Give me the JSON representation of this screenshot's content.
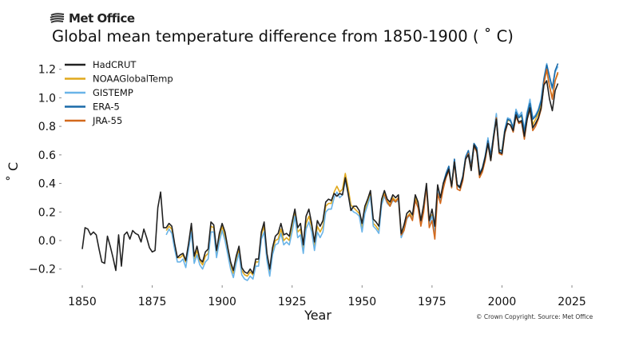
{
  "logo": "Met Office",
  "copyright": "© Crown Copyright. Source: Met Office",
  "chart_data": {
    "type": "line",
    "title": "Global mean temperature difference from 1850-1900 ( ˚ C)",
    "xlabel": "Year",
    "ylabel": "˚ C",
    "xlim": [
      1843,
      2027
    ],
    "ylim": [
      -0.3,
      1.3
    ],
    "xticks": [
      1850,
      1875,
      1900,
      1925,
      1950,
      1975,
      2000,
      2025
    ],
    "xtick_labels": [
      "1850",
      "1875",
      "1900",
      "1925",
      "1950",
      "1975",
      "2000",
      "2025"
    ],
    "yticks": [
      -0.2,
      0.0,
      0.2,
      0.4,
      0.6,
      0.8,
      1.0,
      1.2
    ],
    "ytick_labels": [
      "−0.2",
      "0.0",
      "0.2",
      "0.4",
      "0.6",
      "0.8",
      "1.0",
      "1.2"
    ],
    "grid": false,
    "legend": "top-left",
    "series": [
      {
        "name": "HadCRUT",
        "color": "#222222",
        "start_year": 1850,
        "values": [
          -0.06,
          0.09,
          0.08,
          0.04,
          0.06,
          0.04,
          -0.06,
          -0.15,
          -0.16,
          0.03,
          -0.04,
          -0.12,
          -0.21,
          0.04,
          -0.18,
          0.04,
          0.06,
          0.01,
          0.07,
          0.05,
          0.04,
          -0.01,
          0.08,
          0.02,
          -0.05,
          -0.08,
          -0.07,
          0.23,
          0.34,
          0.09,
          0.09,
          0.12,
          0.1,
          -0.02,
          -0.12,
          -0.1,
          -0.09,
          -0.14,
          -0.02,
          0.12,
          -0.11,
          -0.04,
          -0.13,
          -0.15,
          -0.08,
          -0.06,
          0.13,
          0.11,
          -0.07,
          0.05,
          0.12,
          0.06,
          -0.05,
          -0.15,
          -0.21,
          -0.11,
          -0.04,
          -0.19,
          -0.22,
          -0.23,
          -0.2,
          -0.23,
          -0.13,
          -0.13,
          0.06,
          0.13,
          -0.09,
          -0.2,
          -0.05,
          0.03,
          0.05,
          0.12,
          0.04,
          0.05,
          0.03,
          0.13,
          0.22,
          0.09,
          0.12,
          -0.03,
          0.17,
          0.22,
          0.12,
          -0.01,
          0.14,
          0.1,
          0.14,
          0.27,
          0.29,
          0.28,
          0.33,
          0.31,
          0.33,
          0.32,
          0.44,
          0.33,
          0.21,
          0.24,
          0.24,
          0.21,
          0.12,
          0.24,
          0.29,
          0.35,
          0.15,
          0.13,
          0.1,
          0.29,
          0.35,
          0.29,
          0.27,
          0.32,
          0.3,
          0.32,
          0.05,
          0.11,
          0.19,
          0.21,
          0.18,
          0.32,
          0.27,
          0.14,
          0.25,
          0.4,
          0.14,
          0.22,
          0.1,
          0.39,
          0.3,
          0.4,
          0.45,
          0.5,
          0.38,
          0.55,
          0.39,
          0.37,
          0.44,
          0.57,
          0.6,
          0.49,
          0.67,
          0.63,
          0.46,
          0.5,
          0.58,
          0.68,
          0.56,
          0.72,
          0.85,
          0.62,
          0.61,
          0.76,
          0.82,
          0.81,
          0.77,
          0.88,
          0.83,
          0.84,
          0.73,
          0.85,
          0.93,
          0.79,
          0.82,
          0.86,
          0.93,
          1.09,
          1.12,
          0.99,
          0.91,
          1.05,
          1.1
        ]
      },
      {
        "name": "NOAAGlobalTemp",
        "color": "#e0a81c",
        "start_year": 1880,
        "values": [
          0.07,
          0.1,
          0.08,
          -0.04,
          -0.12,
          -0.12,
          -0.1,
          -0.15,
          -0.03,
          0.1,
          -0.13,
          -0.07,
          -0.14,
          -0.17,
          -0.11,
          -0.09,
          0.1,
          0.09,
          -0.09,
          0.02,
          0.1,
          0.03,
          -0.07,
          -0.17,
          -0.23,
          -0.13,
          -0.06,
          -0.21,
          -0.24,
          -0.25,
          -0.22,
          -0.24,
          -0.15,
          -0.15,
          0.04,
          0.1,
          -0.11,
          -0.22,
          -0.07,
          0.0,
          0.01,
          0.08,
          0.0,
          0.02,
          0.0,
          0.1,
          0.2,
          0.06,
          0.08,
          -0.06,
          0.12,
          0.17,
          0.1,
          -0.04,
          0.1,
          0.06,
          0.1,
          0.24,
          0.26,
          0.26,
          0.34,
          0.38,
          0.34,
          0.36,
          0.47,
          0.37,
          0.25,
          0.23,
          0.21,
          0.19,
          0.09,
          0.21,
          0.27,
          0.33,
          0.12,
          0.1,
          0.07,
          0.27,
          0.33,
          0.28,
          0.25,
          0.3,
          0.28,
          0.3,
          0.03,
          0.08,
          0.16,
          0.19,
          0.16,
          0.3,
          0.25,
          0.12,
          0.23,
          0.38,
          0.12,
          0.18,
          0.06,
          0.37,
          0.28,
          0.38,
          0.46,
          0.5,
          0.38,
          0.56,
          0.38,
          0.37,
          0.44,
          0.58,
          0.61,
          0.5,
          0.67,
          0.63,
          0.46,
          0.5,
          0.58,
          0.7,
          0.57,
          0.74,
          0.88,
          0.64,
          0.63,
          0.78,
          0.84,
          0.84,
          0.79,
          0.91,
          0.86,
          0.87,
          0.76,
          0.88,
          0.96,
          0.81,
          0.85,
          0.89,
          0.96,
          1.12,
          1.19,
          1.08,
          1.0,
          1.12,
          1.17
        ]
      },
      {
        "name": "GISTEMP",
        "color": "#6ab4e8",
        "start_year": 1880,
        "values": [
          0.04,
          0.08,
          0.05,
          -0.06,
          -0.15,
          -0.15,
          -0.13,
          -0.19,
          -0.06,
          0.06,
          -0.16,
          -0.1,
          -0.17,
          -0.2,
          -0.15,
          -0.13,
          0.06,
          0.06,
          -0.12,
          -0.01,
          0.07,
          0.0,
          -0.1,
          -0.2,
          -0.26,
          -0.16,
          -0.09,
          -0.24,
          -0.27,
          -0.28,
          -0.25,
          -0.27,
          -0.18,
          -0.18,
          0.01,
          0.06,
          -0.14,
          -0.25,
          -0.1,
          -0.03,
          -0.02,
          0.05,
          -0.03,
          -0.01,
          -0.03,
          0.06,
          0.17,
          0.02,
          0.04,
          -0.09,
          0.08,
          0.13,
          0.06,
          -0.07,
          0.06,
          0.02,
          0.06,
          0.2,
          0.22,
          0.22,
          0.3,
          0.34,
          0.3,
          0.32,
          0.42,
          0.33,
          0.22,
          0.2,
          0.19,
          0.17,
          0.06,
          0.19,
          0.25,
          0.31,
          0.1,
          0.08,
          0.05,
          0.25,
          0.31,
          0.26,
          0.24,
          0.28,
          0.27,
          0.28,
          0.02,
          0.07,
          0.15,
          0.18,
          0.15,
          0.28,
          0.24,
          0.12,
          0.22,
          0.37,
          0.12,
          0.17,
          0.06,
          0.36,
          0.28,
          0.38,
          0.46,
          0.52,
          0.38,
          0.57,
          0.38,
          0.37,
          0.44,
          0.59,
          0.63,
          0.51,
          0.68,
          0.65,
          0.47,
          0.5,
          0.59,
          0.72,
          0.58,
          0.74,
          0.89,
          0.64,
          0.62,
          0.78,
          0.86,
          0.85,
          0.79,
          0.92,
          0.87,
          0.9,
          0.78,
          0.9,
          0.99,
          0.86,
          0.88,
          0.92,
          0.99,
          1.14,
          1.24,
          1.14,
          1.06,
          1.18,
          1.22
        ]
      },
      {
        "name": "ERA-5",
        "color": "#1a6aa8",
        "start_year": 1979,
        "values": [
          0.4,
          0.47,
          0.52,
          0.37,
          0.57,
          0.39,
          0.38,
          0.45,
          0.58,
          0.63,
          0.52,
          0.68,
          0.65,
          0.47,
          0.51,
          0.59,
          0.7,
          0.6,
          0.73,
          0.86,
          0.63,
          0.63,
          0.77,
          0.85,
          0.84,
          0.79,
          0.9,
          0.86,
          0.88,
          0.76,
          0.89,
          0.96,
          0.85,
          0.87,
          0.91,
          0.98,
          1.13,
          1.23,
          1.15,
          1.07,
          1.19,
          1.24
        ]
      },
      {
        "name": "JRA-55",
        "color": "#d3691c",
        "start_year": 1958,
        "values": [
          0.32,
          0.27,
          0.24,
          0.29,
          0.27,
          0.3,
          0.04,
          0.07,
          0.16,
          0.18,
          0.14,
          0.28,
          0.23,
          0.1,
          0.2,
          0.38,
          0.09,
          0.14,
          0.01,
          0.33,
          0.26,
          0.36,
          0.44,
          0.49,
          0.37,
          0.55,
          0.36,
          0.35,
          0.42,
          0.57,
          0.61,
          0.5,
          0.66,
          0.62,
          0.44,
          0.48,
          0.56,
          0.68,
          0.56,
          0.71,
          0.86,
          0.61,
          0.6,
          0.75,
          0.82,
          0.81,
          0.76,
          0.87,
          0.82,
          0.83,
          0.71,
          0.85,
          0.92,
          0.77,
          0.8,
          0.85,
          0.92,
          1.1,
          1.2,
          1.08,
          0.99,
          1.12,
          1.18
        ]
      }
    ]
  }
}
